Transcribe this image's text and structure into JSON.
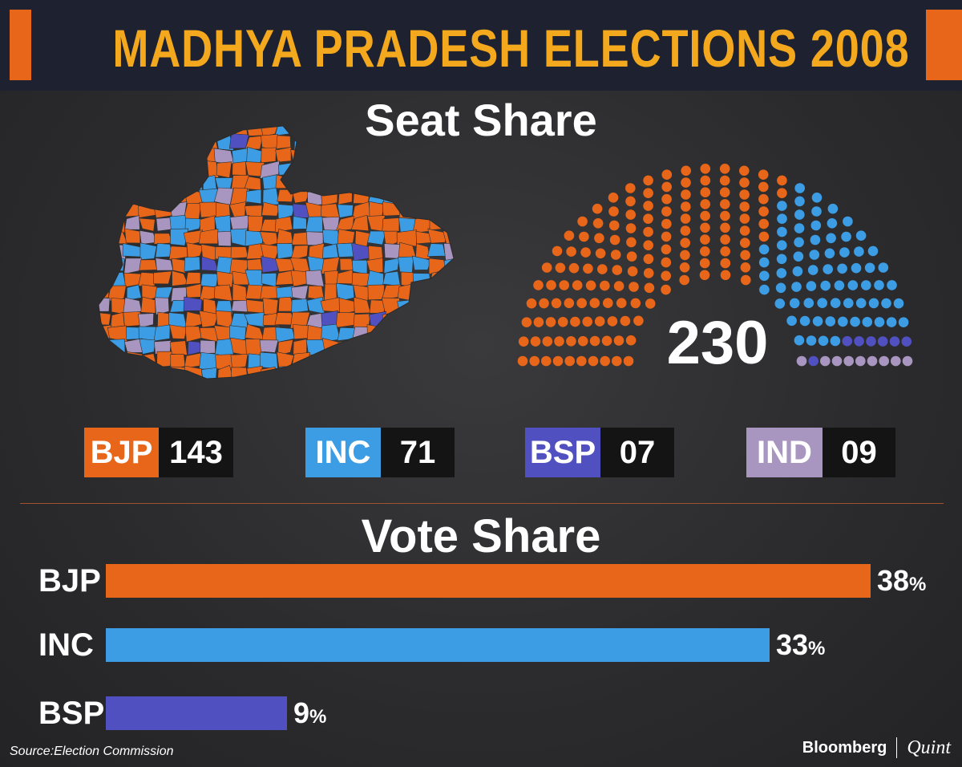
{
  "header": {
    "title": "MADHYA PRADESH ELECTIONS 2008"
  },
  "seat_share": {
    "title": "Seat Share",
    "total": "230",
    "parties": [
      {
        "name": "BJP",
        "seats": "143",
        "color": "#e8661a"
      },
      {
        "name": "INC",
        "seats": "71",
        "color": "#3d9de4"
      },
      {
        "name": "BSP",
        "seats": "07",
        "color": "#5050c0"
      },
      {
        "name": "IND",
        "seats": "09",
        "color": "#a896c0"
      }
    ]
  },
  "vote_share": {
    "title": "Vote Share",
    "pct_symbol": "%"
  },
  "chart_data": [
    {
      "type": "parliament",
      "title": "Seat Share",
      "total": 230,
      "categories": [
        "BJP",
        "INC",
        "BSP",
        "IND"
      ],
      "values": [
        143,
        71,
        7,
        9
      ],
      "colors": [
        "#e8661a",
        "#3d9de4",
        "#5050c0",
        "#a896c0"
      ]
    },
    {
      "type": "bar",
      "orientation": "horizontal",
      "title": "Vote Share",
      "categories": [
        "BJP",
        "INC",
        "BSP"
      ],
      "values": [
        38,
        33,
        9
      ],
      "unit": "%",
      "colors": [
        "#e8661a",
        "#3d9de4",
        "#5050c0"
      ]
    }
  ],
  "map": {
    "colors": [
      "#e8661a",
      "#3d9de4",
      "#5050c0",
      "#a896c0"
    ]
  },
  "footer": {
    "source": "Source:Election Commission",
    "brand_left": "Bloomberg",
    "brand_right": "Quint"
  }
}
